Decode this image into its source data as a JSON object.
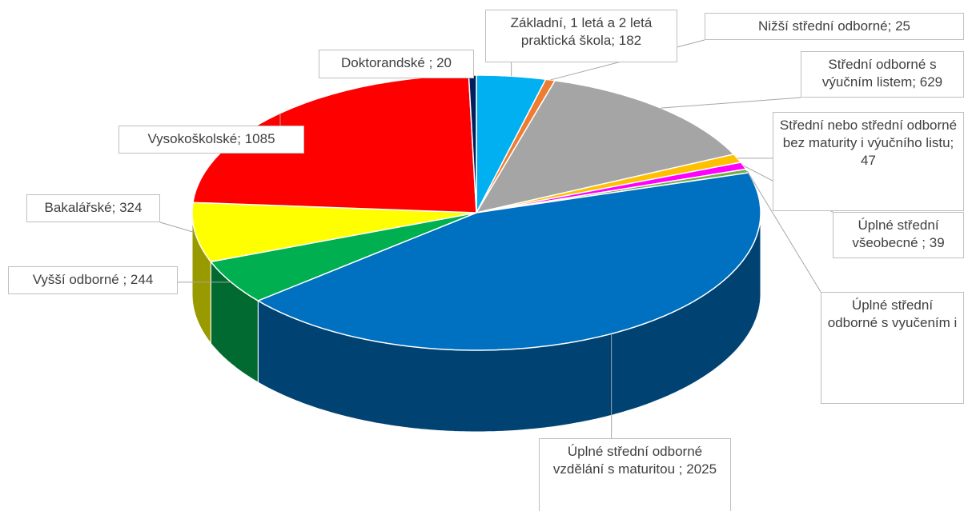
{
  "chart_data": {
    "type": "pie3d",
    "categories": [
      "Základní, 1 letá a 2 letá praktická škola;",
      "Nižší střední odborné;",
      "Střední odborné s výučním listem;",
      "Střední nebo střední odborné bez maturity i výučního listu;",
      "Úplné střední všeobecné ;",
      "Úplné střední odborné s vyučením i",
      "Úplné střední odborné vzdělání s maturitou ;",
      "Vyšší odborné ;",
      "Bakalářské;",
      "Vysokoškolské;",
      "Doktorandské ;"
    ],
    "values": [
      182,
      25,
      629,
      47,
      39,
      20,
      2025,
      244,
      324,
      1085,
      20
    ],
    "colors": [
      "#00b0f0",
      "#ed7d31",
      "#a5a5a5",
      "#ffc000",
      "#ff00ff",
      "#70ad47",
      "#0070c0",
      "#00b050",
      "#ffff00",
      "#ff0000",
      "#002060"
    ]
  }
}
